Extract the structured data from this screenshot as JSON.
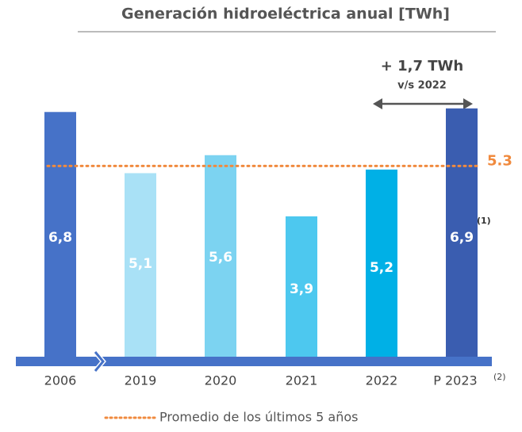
{
  "chart_data": {
    "type": "bar",
    "title": "Generación hidroeléctrica anual [TWh]",
    "categories": [
      "2006",
      "2019",
      "2020",
      "2021",
      "2022",
      "P 2023"
    ],
    "values": [
      6.8,
      5.1,
      5.6,
      3.9,
      5.2,
      6.9
    ],
    "value_labels": [
      "6,8",
      "5,1",
      "5,6",
      "3,9",
      "5,2",
      "6,9"
    ],
    "colors": [
      "#4672c8",
      "#a9e1f6",
      "#7cd3f1",
      "#4dc8ef",
      "#00b0e6",
      "#3a5db0"
    ],
    "average": {
      "name": "Promedio de los últimos 5 años",
      "value": 5.3,
      "label": "5.3",
      "color": "#f08a3e"
    },
    "annotations": {
      "difference": "+ 1,7 TWh",
      "comparison": "v/s 2022",
      "value_note": "(1)",
      "category_note": "(2)"
    }
  }
}
